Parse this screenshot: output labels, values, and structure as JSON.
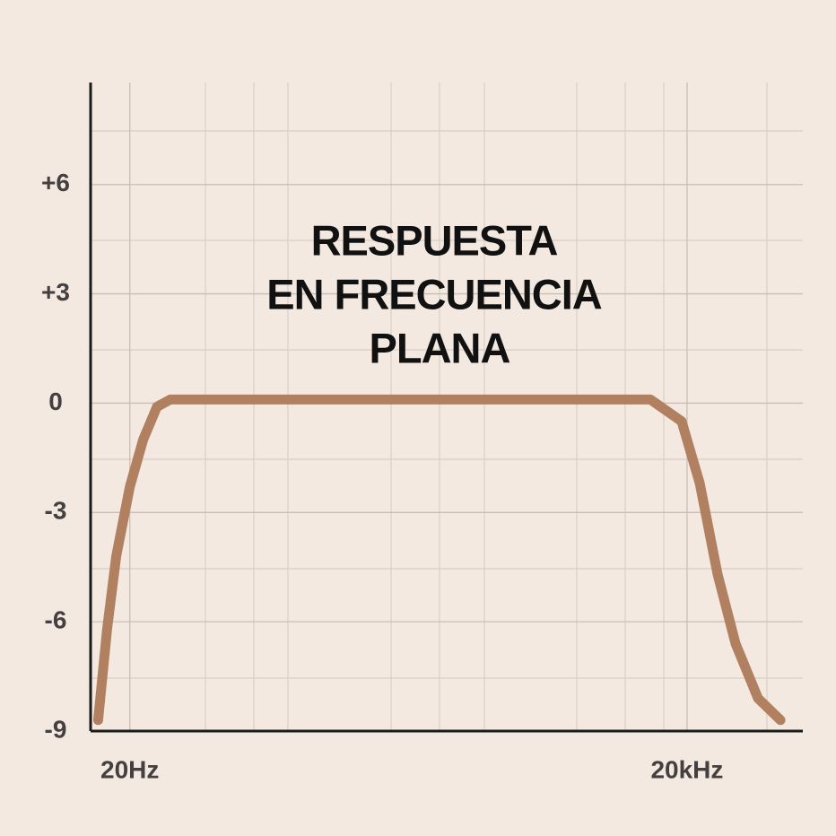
{
  "chart_data": {
    "type": "line",
    "title": [
      "RESPUESTA",
      "EN FRECUENCIA",
      "PLANA"
    ],
    "x": [
      13.5,
      15.1,
      16.9,
      20,
      23.6,
      28,
      33,
      12700,
      18700,
      23400,
      29200,
      36500,
      48200,
      63700
    ],
    "series": [
      {
        "color": "#b08060",
        "values": [
          -8.7,
          -6.2,
          -4.2,
          -2.3,
          -1.0,
          -0.1,
          0.1,
          0.1,
          -0.5,
          -2.2,
          -4.7,
          -6.6,
          -8.1,
          -8.7
        ]
      }
    ],
    "xlog": true,
    "xlim": [
      12.3,
      84000
    ],
    "xticks": [
      {
        "value": 20,
        "label": "20Hz"
      },
      {
        "value": 20000,
        "label": "20kHz"
      }
    ],
    "ylim": [
      -9,
      8.8
    ],
    "yticks": [
      {
        "value": 6,
        "label": "+6"
      },
      {
        "value": 3,
        "label": "+3"
      },
      0,
      -3,
      -6,
      -9
    ],
    "grid": true
  }
}
